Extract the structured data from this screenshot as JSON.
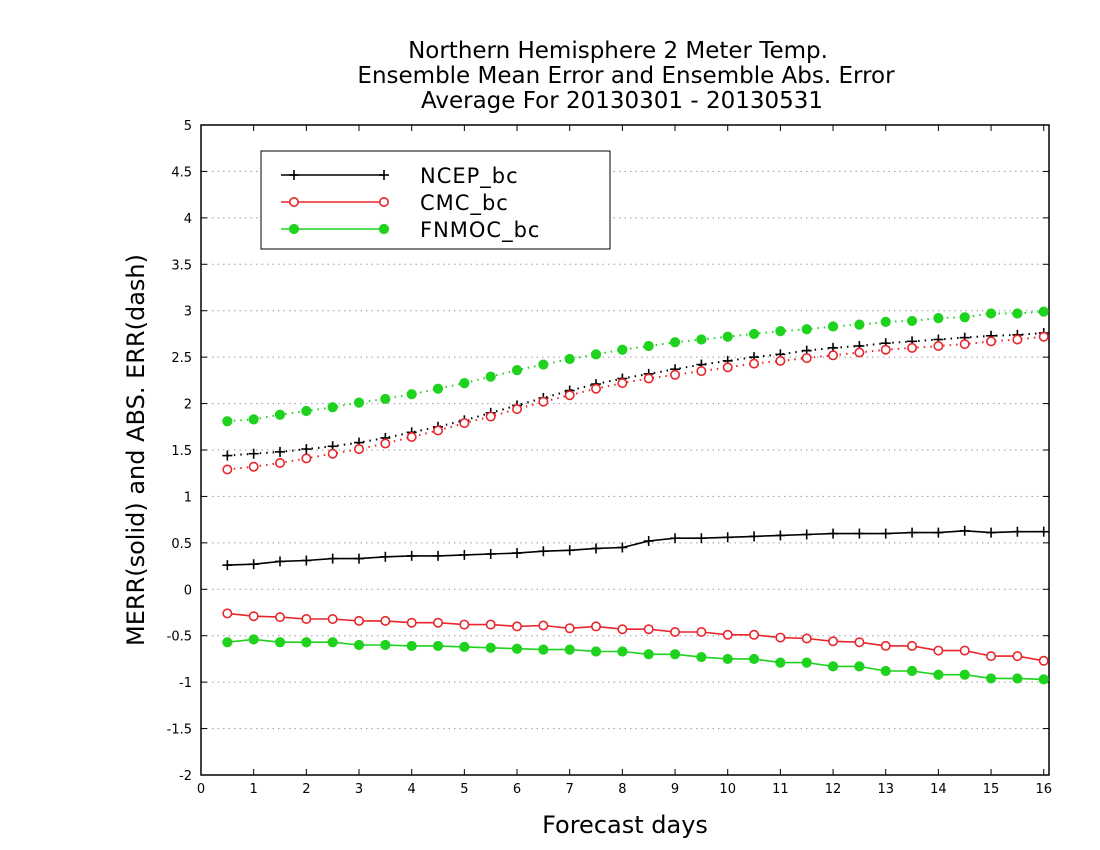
{
  "chart_data": {
    "type": "line",
    "title": [
      "Northern Hemisphere 2 Meter Temp.",
      "Ensemble Mean Error and Ensemble Abs. Error",
      "Average For 20130301 - 20130531"
    ],
    "xlabel": "Forecast days",
    "ylabel": "MERR(solid) and ABS. ERR(dash)",
    "xlim": [
      0,
      16.1
    ],
    "ylim": [
      -2,
      5
    ],
    "x_ticks": [
      0,
      1,
      2,
      3,
      4,
      5,
      6,
      7,
      8,
      9,
      10,
      11,
      12,
      13,
      14,
      15,
      16
    ],
    "y_ticks": [
      -2,
      -1.5,
      -1,
      -0.5,
      0,
      0.5,
      1,
      1.5,
      2,
      2.5,
      3,
      3.5,
      4,
      4.5,
      5
    ],
    "grid": "dotted horizontal",
    "legend": "top-left",
    "x": [
      0.5,
      1,
      1.5,
      2,
      2.5,
      3,
      3.5,
      4,
      4.5,
      5,
      5.5,
      6,
      6.5,
      7,
      7.5,
      8,
      8.5,
      9,
      9.5,
      10,
      10.5,
      11,
      11.5,
      12,
      12.5,
      13,
      13.5,
      14,
      14.5,
      15,
      15.5,
      16
    ],
    "series": [
      {
        "name": "NCEP_bc",
        "color": "#000000",
        "marker": "plus",
        "merr": [
          0.26,
          0.27,
          0.3,
          0.31,
          0.33,
          0.33,
          0.35,
          0.36,
          0.36,
          0.37,
          0.38,
          0.39,
          0.41,
          0.42,
          0.44,
          0.45,
          0.52,
          0.55,
          0.55,
          0.56,
          0.57,
          0.58,
          0.59,
          0.6,
          0.6,
          0.6,
          0.61,
          0.61,
          0.63,
          0.61,
          0.62,
          0.62
        ],
        "abs_err": [
          1.44,
          1.46,
          1.48,
          1.51,
          1.54,
          1.58,
          1.63,
          1.69,
          1.75,
          1.82,
          1.9,
          1.98,
          2.06,
          2.14,
          2.21,
          2.27,
          2.32,
          2.37,
          2.42,
          2.46,
          2.5,
          2.53,
          2.57,
          2.6,
          2.62,
          2.65,
          2.67,
          2.69,
          2.71,
          2.73,
          2.74,
          2.76
        ]
      },
      {
        "name": "CMC_bc",
        "color": "#e8262c",
        "marker": "open-circle",
        "merr": [
          -0.26,
          -0.29,
          -0.3,
          -0.32,
          -0.32,
          -0.34,
          -0.34,
          -0.36,
          -0.36,
          -0.38,
          -0.38,
          -0.4,
          -0.39,
          -0.42,
          -0.4,
          -0.43,
          -0.43,
          -0.46,
          -0.46,
          -0.49,
          -0.49,
          -0.52,
          -0.53,
          -0.56,
          -0.57,
          -0.61,
          -0.61,
          -0.66,
          -0.66,
          -0.72,
          -0.72,
          -0.77
        ],
        "abs_err": [
          1.29,
          1.32,
          1.36,
          1.41,
          1.46,
          1.51,
          1.57,
          1.64,
          1.71,
          1.79,
          1.86,
          1.94,
          2.02,
          2.09,
          2.16,
          2.22,
          2.27,
          2.31,
          2.35,
          2.39,
          2.43,
          2.46,
          2.49,
          2.52,
          2.55,
          2.58,
          2.6,
          2.62,
          2.64,
          2.67,
          2.69,
          2.72
        ]
      },
      {
        "name": "FNMOC_bc",
        "color": "#1ed21e",
        "marker": "filled-circle",
        "merr": [
          -0.57,
          -0.54,
          -0.57,
          -0.57,
          -0.57,
          -0.6,
          -0.6,
          -0.61,
          -0.61,
          -0.62,
          -0.63,
          -0.64,
          -0.65,
          -0.65,
          -0.67,
          -0.67,
          -0.7,
          -0.7,
          -0.73,
          -0.75,
          -0.75,
          -0.79,
          -0.79,
          -0.83,
          -0.83,
          -0.88,
          -0.88,
          -0.92,
          -0.92,
          -0.96,
          -0.96,
          -0.97
        ],
        "abs_err": [
          1.81,
          1.83,
          1.88,
          1.92,
          1.96,
          2.01,
          2.05,
          2.1,
          2.16,
          2.22,
          2.29,
          2.36,
          2.42,
          2.48,
          2.53,
          2.58,
          2.62,
          2.66,
          2.69,
          2.72,
          2.75,
          2.78,
          2.8,
          2.83,
          2.85,
          2.88,
          2.89,
          2.92,
          2.93,
          2.97,
          2.97,
          2.99
        ]
      }
    ]
  }
}
